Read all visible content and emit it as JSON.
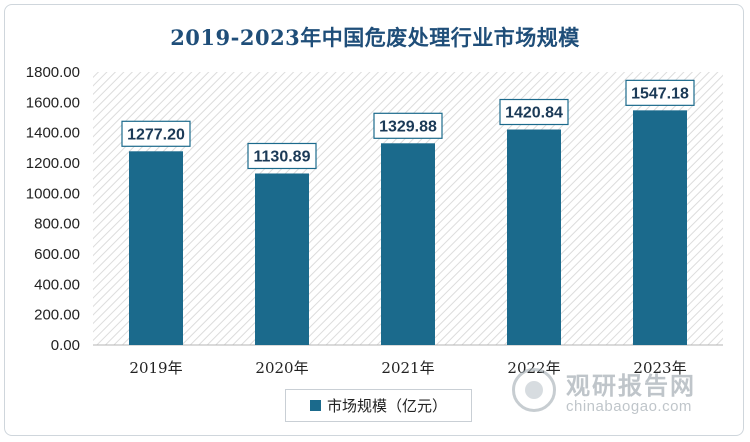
{
  "chart_data": {
    "type": "bar",
    "title": "2019-2023年中国危废处理行业市场规模",
    "categories": [
      "2019年",
      "2020年",
      "2021年",
      "2022年",
      "2023年"
    ],
    "series": [
      {
        "name": "市场规模（亿元）",
        "values": [
          1277.2,
          1130.89,
          1329.88,
          1420.84,
          1547.18
        ]
      }
    ],
    "data_labels": [
      "1277.20",
      "1130.89",
      "1329.88",
      "1420.84",
      "1547.18"
    ],
    "yticks": [
      "0.00",
      "200.00",
      "400.00",
      "600.00",
      "800.00",
      "1000.00",
      "1200.00",
      "1400.00",
      "1600.00",
      "1800.00"
    ],
    "ylim": [
      0,
      1800
    ],
    "xlabel": "",
    "ylabel": "",
    "legend_position": "bottom",
    "grid": false,
    "bar_color": "#1b6a8c",
    "plot_background": "hatched light gray"
  },
  "watermark": {
    "cn": "观研报告网",
    "en": "chinabaogao.com"
  }
}
